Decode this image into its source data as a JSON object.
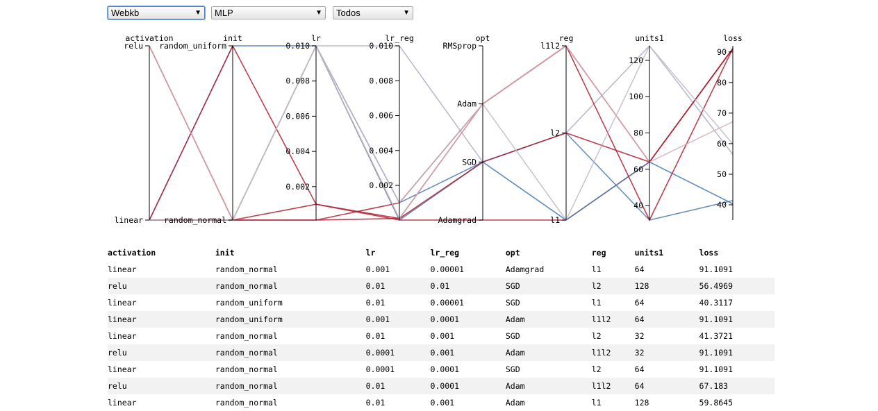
{
  "controls": {
    "dataset": "Webkb",
    "model": "MLP",
    "filter": "Todos"
  },
  "colors": {
    "high_loss": "#b2182b",
    "low_loss": "#2166ac",
    "mid_loss": "#d8c8cc"
  },
  "chart_data": {
    "type": "parallel-coordinates",
    "color_by": "loss",
    "dimensions": [
      {
        "name": "activation",
        "kind": "categorical",
        "values": [
          "linear",
          "relu"
        ]
      },
      {
        "name": "init",
        "kind": "categorical",
        "values": [
          "random_normal",
          "random_uniform"
        ]
      },
      {
        "name": "lr",
        "kind": "numeric",
        "domain": [
          0.0001,
          0.01
        ],
        "ticks": [
          "0.002",
          "0.004",
          "0.006",
          "0.008",
          "0.010"
        ],
        "tick_values": [
          0.002,
          0.004,
          0.006,
          0.008,
          0.01
        ]
      },
      {
        "name": "lr_reg",
        "kind": "numeric",
        "domain": [
          1e-05,
          0.01
        ],
        "ticks": [
          "0.002",
          "0.004",
          "0.006",
          "0.008",
          "0.010"
        ],
        "tick_values": [
          0.002,
          0.004,
          0.006,
          0.008,
          0.01
        ]
      },
      {
        "name": "opt",
        "kind": "categorical",
        "values": [
          "Adamgrad",
          "SGD",
          "Adam",
          "RMSprop"
        ]
      },
      {
        "name": "reg",
        "kind": "categorical",
        "values": [
          "l1",
          "l2",
          "l1l2"
        ]
      },
      {
        "name": "units1",
        "kind": "numeric",
        "domain": [
          32,
          128
        ],
        "ticks": [
          "40",
          "60",
          "80",
          "100",
          "120"
        ],
        "tick_values": [
          40,
          60,
          80,
          100,
          120
        ]
      },
      {
        "name": "loss",
        "kind": "numeric",
        "domain": [
          35,
          92
        ],
        "ticks": [
          "40",
          "50",
          "60",
          "70",
          "80",
          "90"
        ],
        "tick_values": [
          40,
          50,
          60,
          70,
          80,
          90
        ]
      }
    ],
    "rows": [
      {
        "activation": "linear",
        "init": "random_normal",
        "lr": 0.001,
        "lr_reg": 1e-05,
        "opt": "Adamgrad",
        "reg": "l1",
        "units1": 64,
        "loss": 91.1091
      },
      {
        "activation": "relu",
        "init": "random_normal",
        "lr": 0.01,
        "lr_reg": 0.01,
        "opt": "SGD",
        "reg": "l2",
        "units1": 128,
        "loss": 56.4969
      },
      {
        "activation": "linear",
        "init": "random_uniform",
        "lr": 0.01,
        "lr_reg": 1e-05,
        "opt": "SGD",
        "reg": "l1",
        "units1": 64,
        "loss": 40.3117
      },
      {
        "activation": "linear",
        "init": "random_uniform",
        "lr": 0.001,
        "lr_reg": 0.0001,
        "opt": "Adam",
        "reg": "l1l2",
        "units1": 64,
        "loss": 91.1091
      },
      {
        "activation": "linear",
        "init": "random_normal",
        "lr": 0.01,
        "lr_reg": 0.001,
        "opt": "SGD",
        "reg": "l2",
        "units1": 32,
        "loss": 41.3721
      },
      {
        "activation": "relu",
        "init": "random_normal",
        "lr": 0.0001,
        "lr_reg": 0.001,
        "opt": "Adam",
        "reg": "l1l2",
        "units1": 32,
        "loss": 91.1091
      },
      {
        "activation": "linear",
        "init": "random_normal",
        "lr": 0.0001,
        "lr_reg": 0.0001,
        "opt": "SGD",
        "reg": "l2",
        "units1": 64,
        "loss": 91.1091
      },
      {
        "activation": "relu",
        "init": "random_normal",
        "lr": 0.01,
        "lr_reg": 0.0001,
        "opt": "Adam",
        "reg": "l1l2",
        "units1": 64,
        "loss": 67.183
      },
      {
        "activation": "linear",
        "init": "random_normal",
        "lr": 0.01,
        "lr_reg": 0.001,
        "opt": "Adam",
        "reg": "l1",
        "units1": 128,
        "loss": 59.8645
      }
    ]
  }
}
